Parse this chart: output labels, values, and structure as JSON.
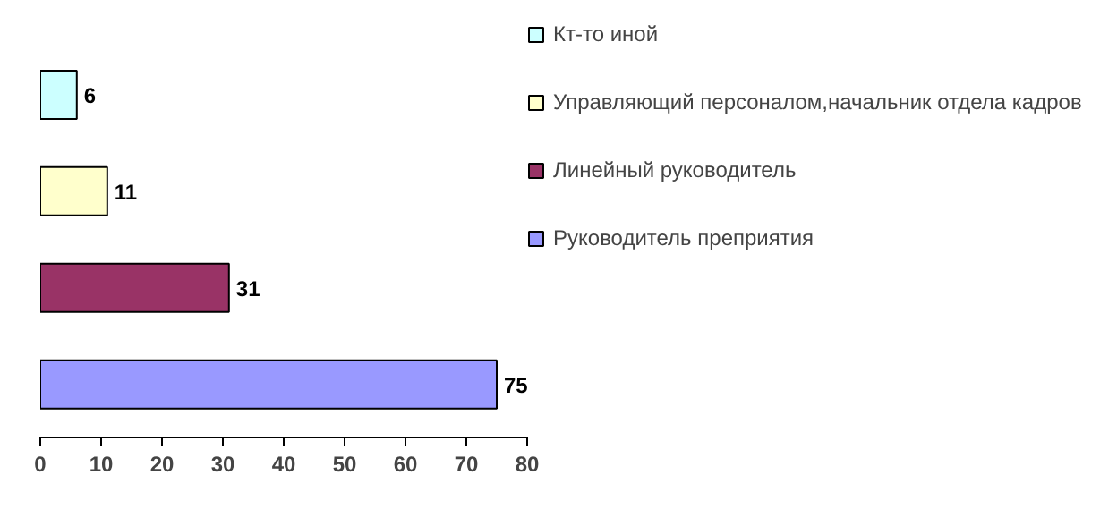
{
  "chart_data": {
    "type": "bar",
    "orientation": "horizontal",
    "stacked": true,
    "categories": [
      null,
      null,
      null,
      null
    ],
    "series": [
      {
        "name": "Кт-то иной",
        "color": "#ccffff",
        "values": [
          6,
          null,
          null,
          null
        ]
      },
      {
        "name": "Управляющий персоналом,начальник отдела кадров",
        "color": "#ffffcc",
        "values": [
          null,
          11,
          null,
          null
        ]
      },
      {
        "name": "Линейный руководитель",
        "color": "#993366",
        "values": [
          null,
          null,
          31,
          null
        ]
      },
      {
        "name": "Руководитель преприятия",
        "color": "#9999ff",
        "values": [
          null,
          null,
          null,
          75
        ]
      }
    ],
    "xlim": [
      0,
      80
    ],
    "xticks": [
      0,
      10,
      20,
      30,
      40,
      50,
      60,
      70,
      80
    ],
    "grid": false,
    "legend": "top right",
    "data_labels": true
  }
}
